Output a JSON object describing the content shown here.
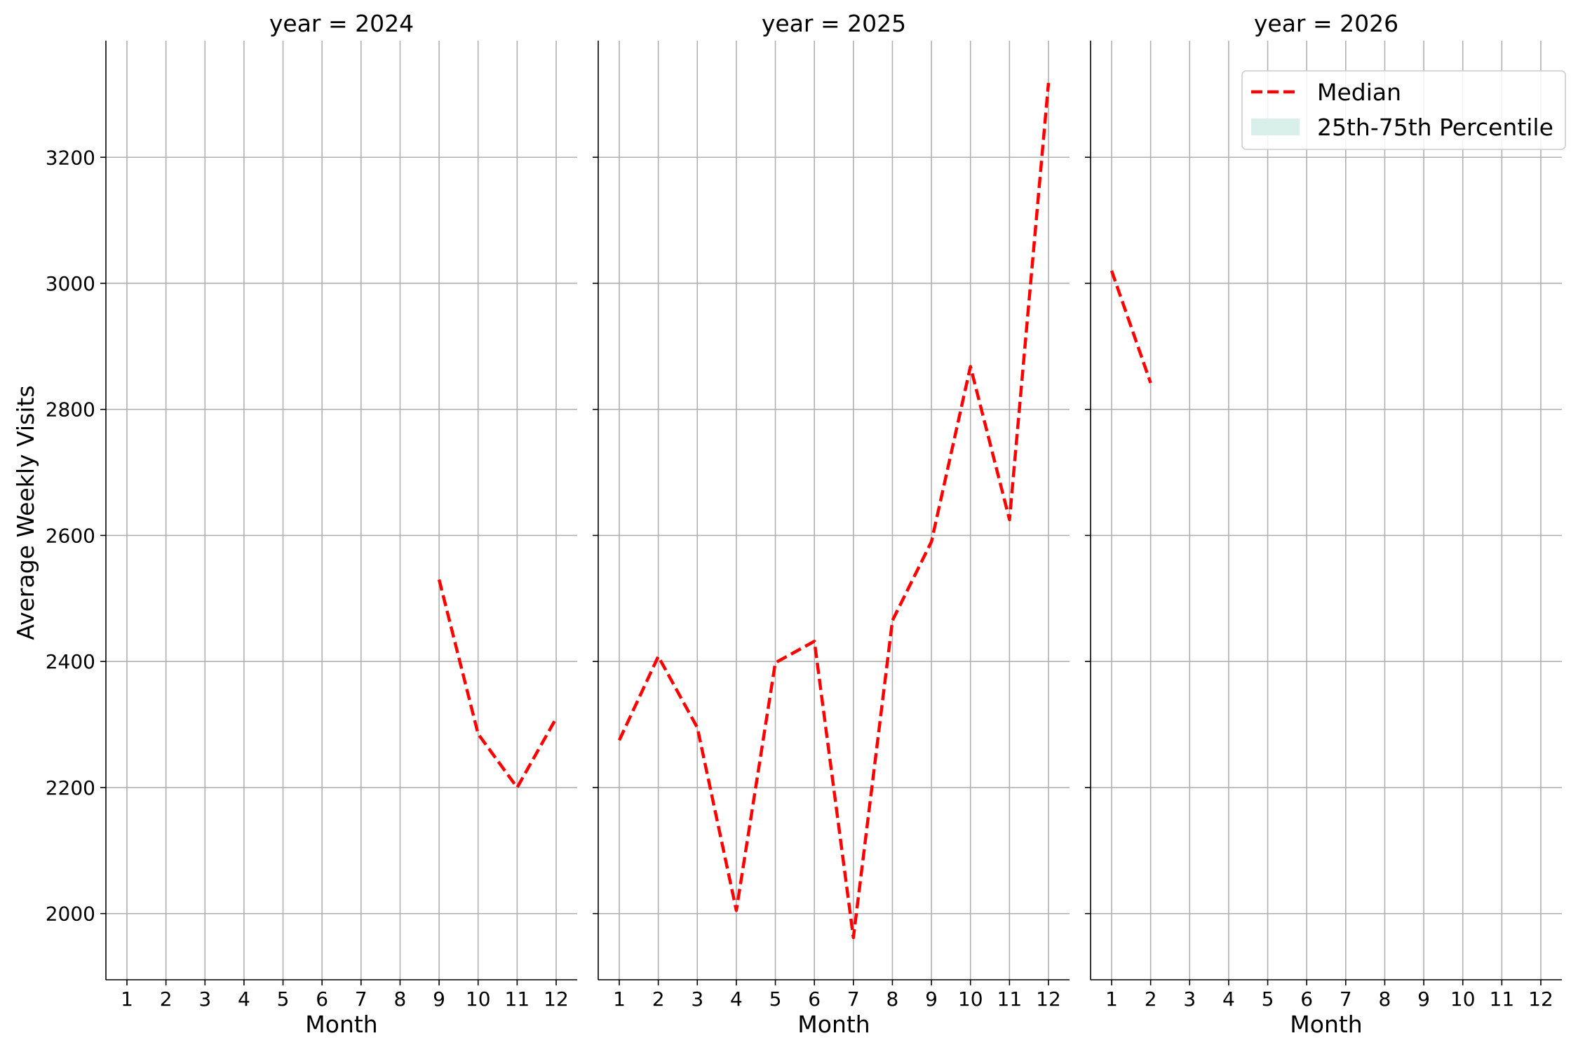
{
  "chart_data": {
    "type": "line",
    "ylabel": "Average Weekly Visits",
    "xlabel": "Month",
    "ylim": [
      1895,
      3385
    ],
    "yticks": [
      2000,
      2200,
      2400,
      2600,
      2800,
      3000,
      3200
    ],
    "xticks": [
      1,
      2,
      3,
      4,
      5,
      6,
      7,
      8,
      9,
      10,
      11,
      12
    ],
    "grid": true,
    "legend": {
      "placement": "top-right of last panel",
      "entries": [
        {
          "label": "Median",
          "color": "#ff0000",
          "style": "dashed-line"
        },
        {
          "label": "25th-75th Percentile",
          "color": "#d9efe9",
          "style": "filled-patch"
        }
      ]
    },
    "panels": [
      {
        "title": "year = 2024",
        "series": [
          {
            "name": "Median",
            "x": [
              9,
              10,
              11,
              12
            ],
            "values": [
              2530,
              2285,
              2200,
              2310
            ]
          }
        ]
      },
      {
        "title": "year = 2025",
        "series": [
          {
            "name": "Median",
            "x": [
              1,
              2,
              3,
              4,
              5,
              6,
              7,
              8,
              9,
              10,
              11,
              12
            ],
            "values": [
              2275,
              2408,
              2295,
              2005,
              2398,
              2432,
              1962,
              2465,
              2590,
              2868,
              2625,
              3318
            ]
          }
        ]
      },
      {
        "title": "year = 2026",
        "series": [
          {
            "name": "Median",
            "x": [
              1,
              2
            ],
            "values": [
              3020,
              2842
            ]
          }
        ]
      }
    ]
  }
}
